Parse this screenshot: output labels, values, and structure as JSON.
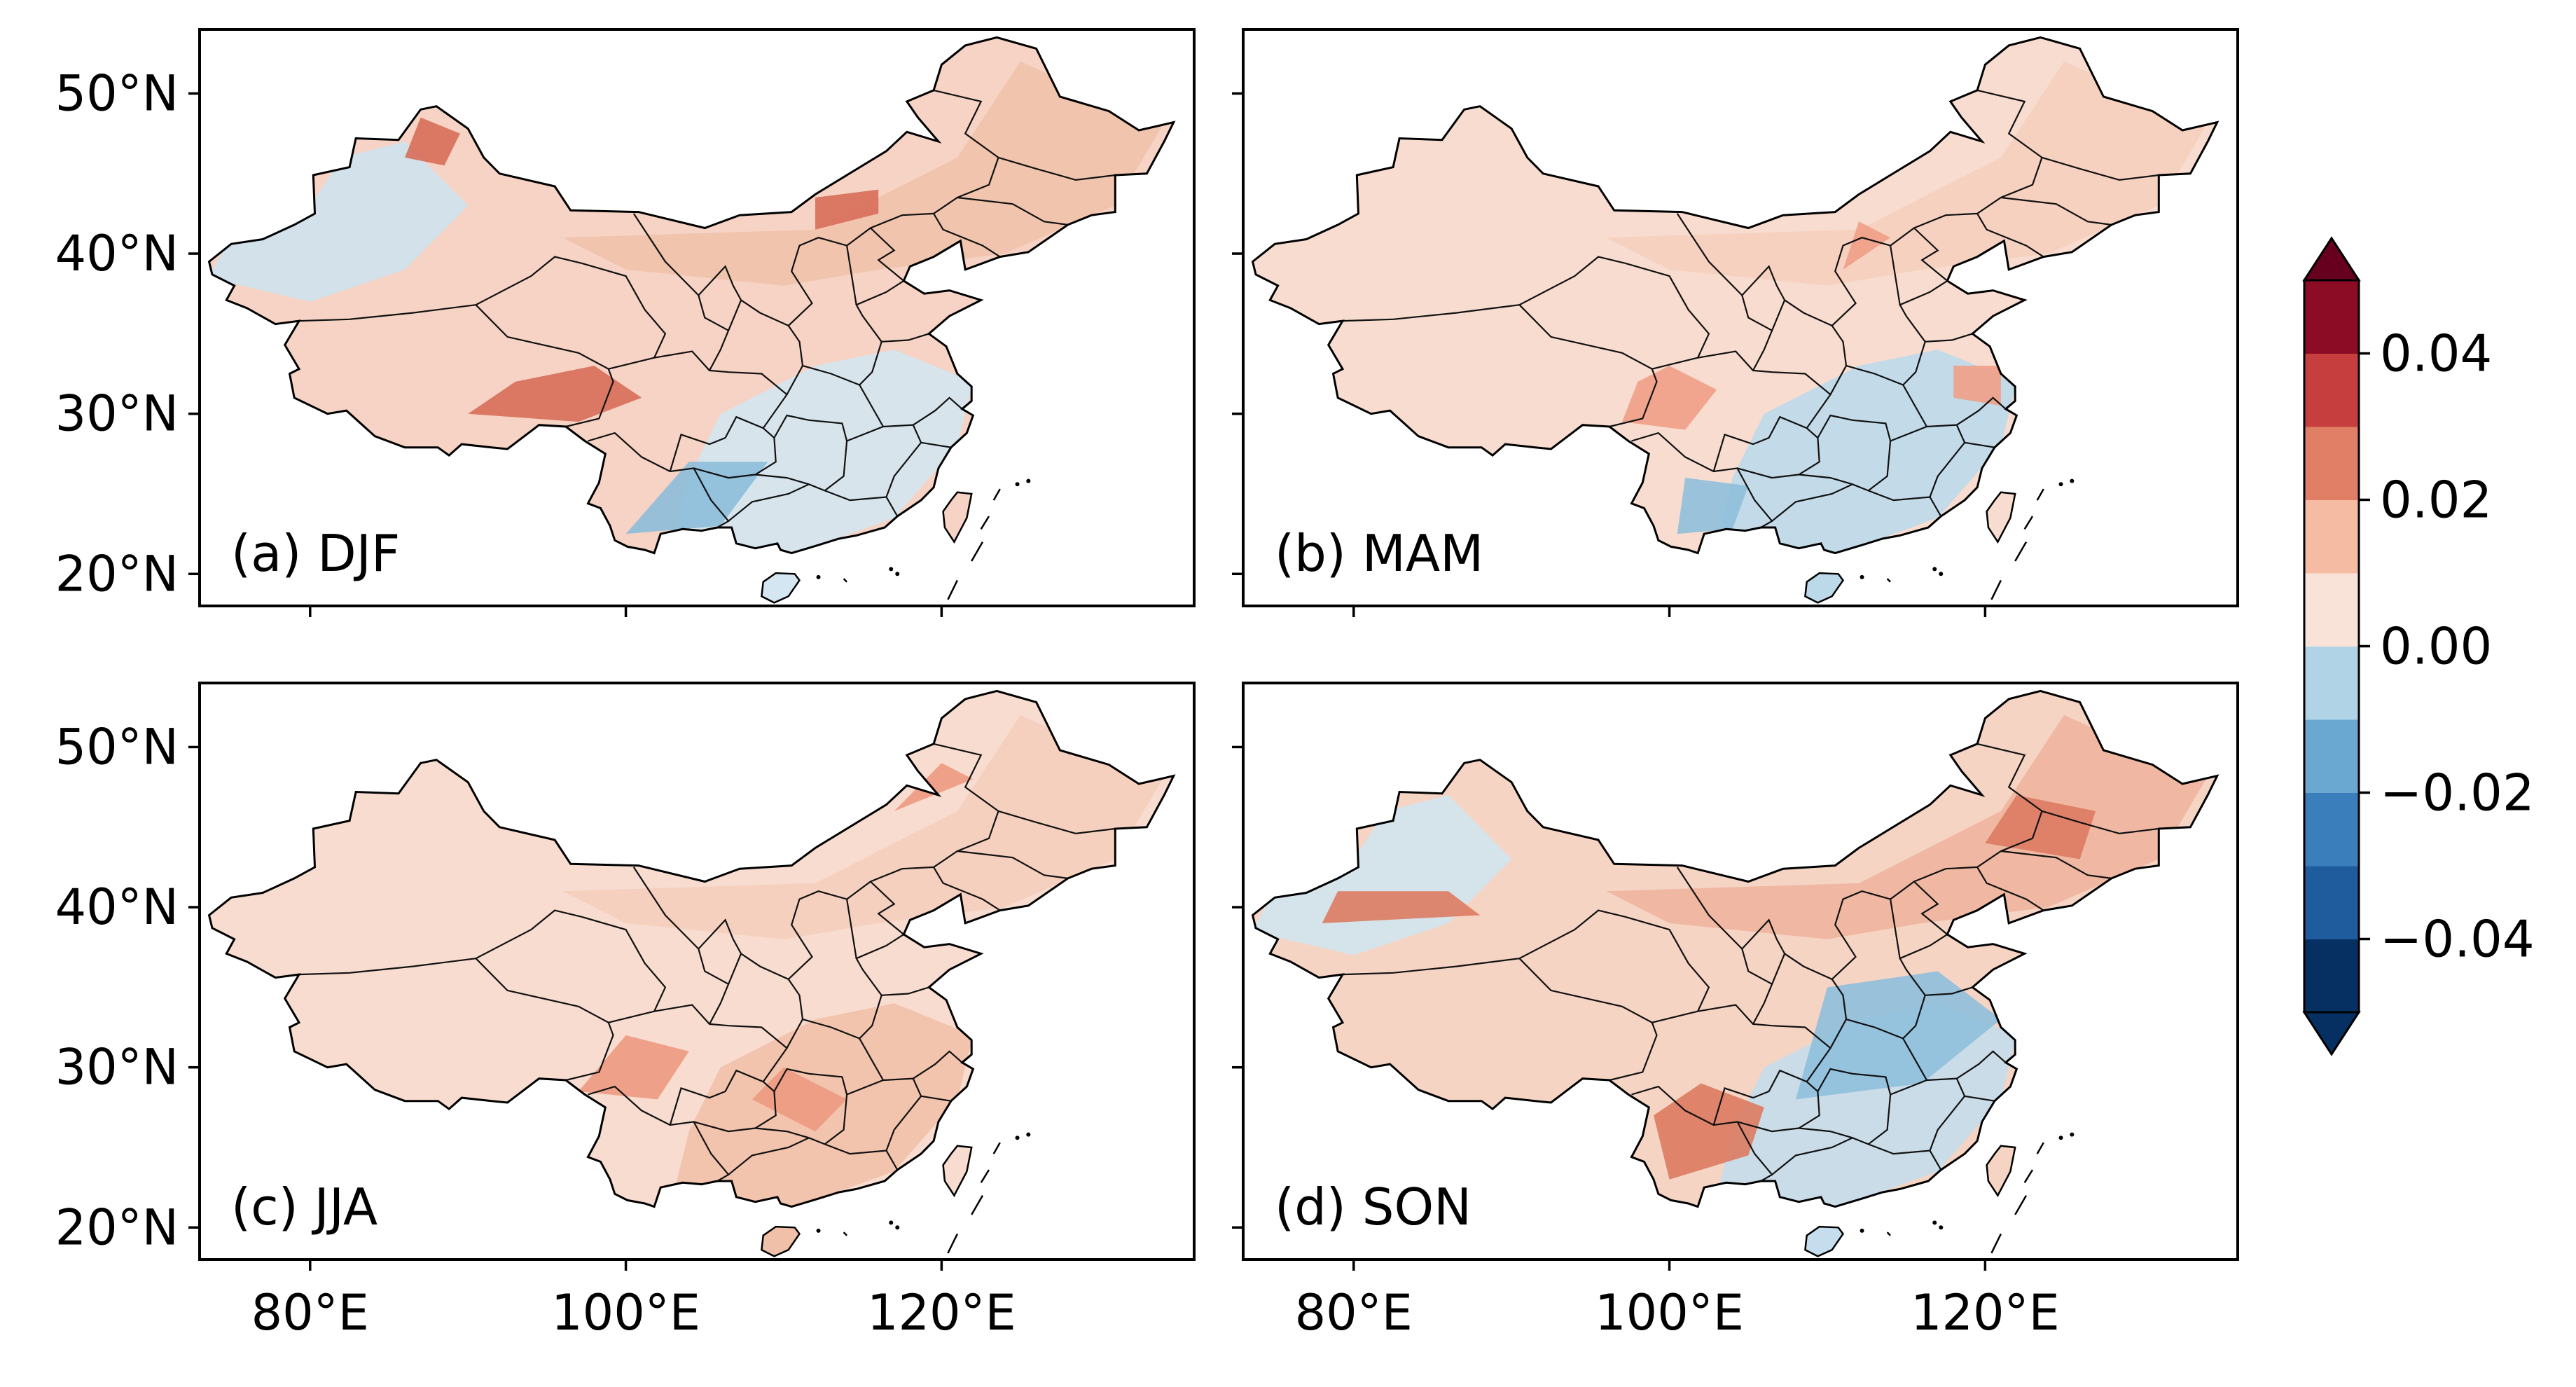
{
  "figure": {
    "panels": [
      {
        "id": "a",
        "label": "(a) DJF",
        "season": "DJF",
        "show_lat_labels": true,
        "show_lon_labels": false
      },
      {
        "id": "b",
        "label": "(b) MAM",
        "season": "MAM",
        "show_lat_labels": false,
        "show_lon_labels": false
      },
      {
        "id": "c",
        "label": "(c) JJA",
        "season": "JJA",
        "show_lat_labels": true,
        "show_lon_labels": true
      },
      {
        "id": "d",
        "label": "(d) SON",
        "season": "SON",
        "show_lat_labels": false,
        "show_lon_labels": true
      }
    ],
    "lat_ticks": [
      {
        "value": 50,
        "label": "50°N"
      },
      {
        "value": 40,
        "label": "40°N"
      },
      {
        "value": 30,
        "label": "30°N"
      },
      {
        "value": 20,
        "label": "20°N"
      }
    ],
    "lon_ticks": [
      {
        "value": 80,
        "label": "80°E"
      },
      {
        "value": 100,
        "label": "100°E"
      },
      {
        "value": 120,
        "label": "120°E"
      }
    ],
    "lon_range": [
      73,
      136
    ],
    "lat_range": [
      18,
      54
    ],
    "colorbar": {
      "ticks": [
        {
          "value": 0.04,
          "label": "0.04"
        },
        {
          "value": 0.02,
          "label": "0.02"
        },
        {
          "value": 0.0,
          "label": "0.00"
        },
        {
          "value": -0.02,
          "label": "−0.02"
        },
        {
          "value": -0.04,
          "label": "−0.04"
        }
      ],
      "range": [
        -0.05,
        0.05
      ],
      "extend": "both",
      "colors_top_to_bottom": [
        "#67001f",
        "#b2182b",
        "#d6604d",
        "#f4a582",
        "#fddbc7",
        "#e7f0f5",
        "#d1e5f0",
        "#92c5de",
        "#4393c3",
        "#2166ac",
        "#053061"
      ],
      "levels_colors": [
        "#053061",
        "#1f5c9e",
        "#3a7fbc",
        "#6aa8d2",
        "#b0d3e6",
        "#e4eef4",
        "#f9e3d9",
        "#f5bca3",
        "#e07e66",
        "#c63f3e",
        "#8c0c25"
      ]
    },
    "season_colors": {
      "DJF": {
        "base": "#f6d3c4",
        "north": "#f1c2ac",
        "northwest": "#cfe2ee",
        "south": "#d4e6f1",
        "hot": "#d76e5a"
      },
      "MAM": {
        "base": "#f7dccf",
        "north": "#f5cfbe",
        "northwest": "#f7dccf",
        "south": "#bcd9ea",
        "hot": "#ef9f86"
      },
      "JJA": {
        "base": "#f7dccf",
        "north": "#f5cebd",
        "northwest": "#f7dccf",
        "south": "#f1c0a8",
        "hot": "#ec9a80"
      },
      "SON": {
        "base": "#f6d4c4",
        "north": "#f0b59e",
        "northwest": "#d1e4ef",
        "south": "#c5ddec",
        "hot": "#dd7b62"
      }
    }
  }
}
